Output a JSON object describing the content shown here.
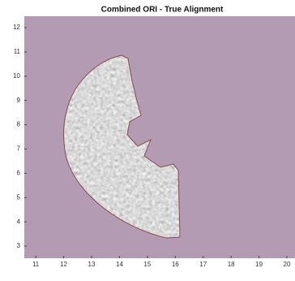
{
  "chart_data": {
    "type": "image",
    "title": "Combined ORI - True Alignment",
    "xlim": [
      10.59,
      20.29
    ],
    "ylim": [
      2.5,
      12.47
    ],
    "xticks": [
      11,
      12,
      13,
      14,
      15,
      16,
      17,
      18,
      19,
      20
    ],
    "yticks": [
      3,
      4,
      5,
      6,
      7,
      8,
      9,
      10,
      11,
      12
    ],
    "background_color": "#b49bb4"
  }
}
